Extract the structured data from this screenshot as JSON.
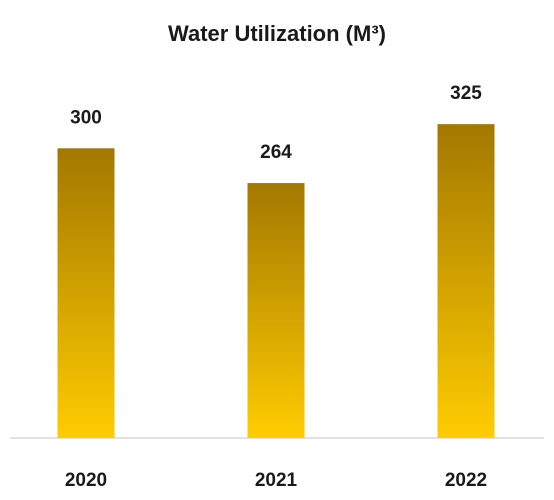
{
  "chart_data": {
    "type": "bar",
    "title": "Water Utilization (M³)",
    "categories": [
      "2020",
      "2021",
      "2022"
    ],
    "values": [
      300,
      264,
      325
    ],
    "gradient": {
      "top": "#a37800",
      "bottom": "#ffcc00"
    },
    "ylim": [
      0,
      350
    ]
  }
}
